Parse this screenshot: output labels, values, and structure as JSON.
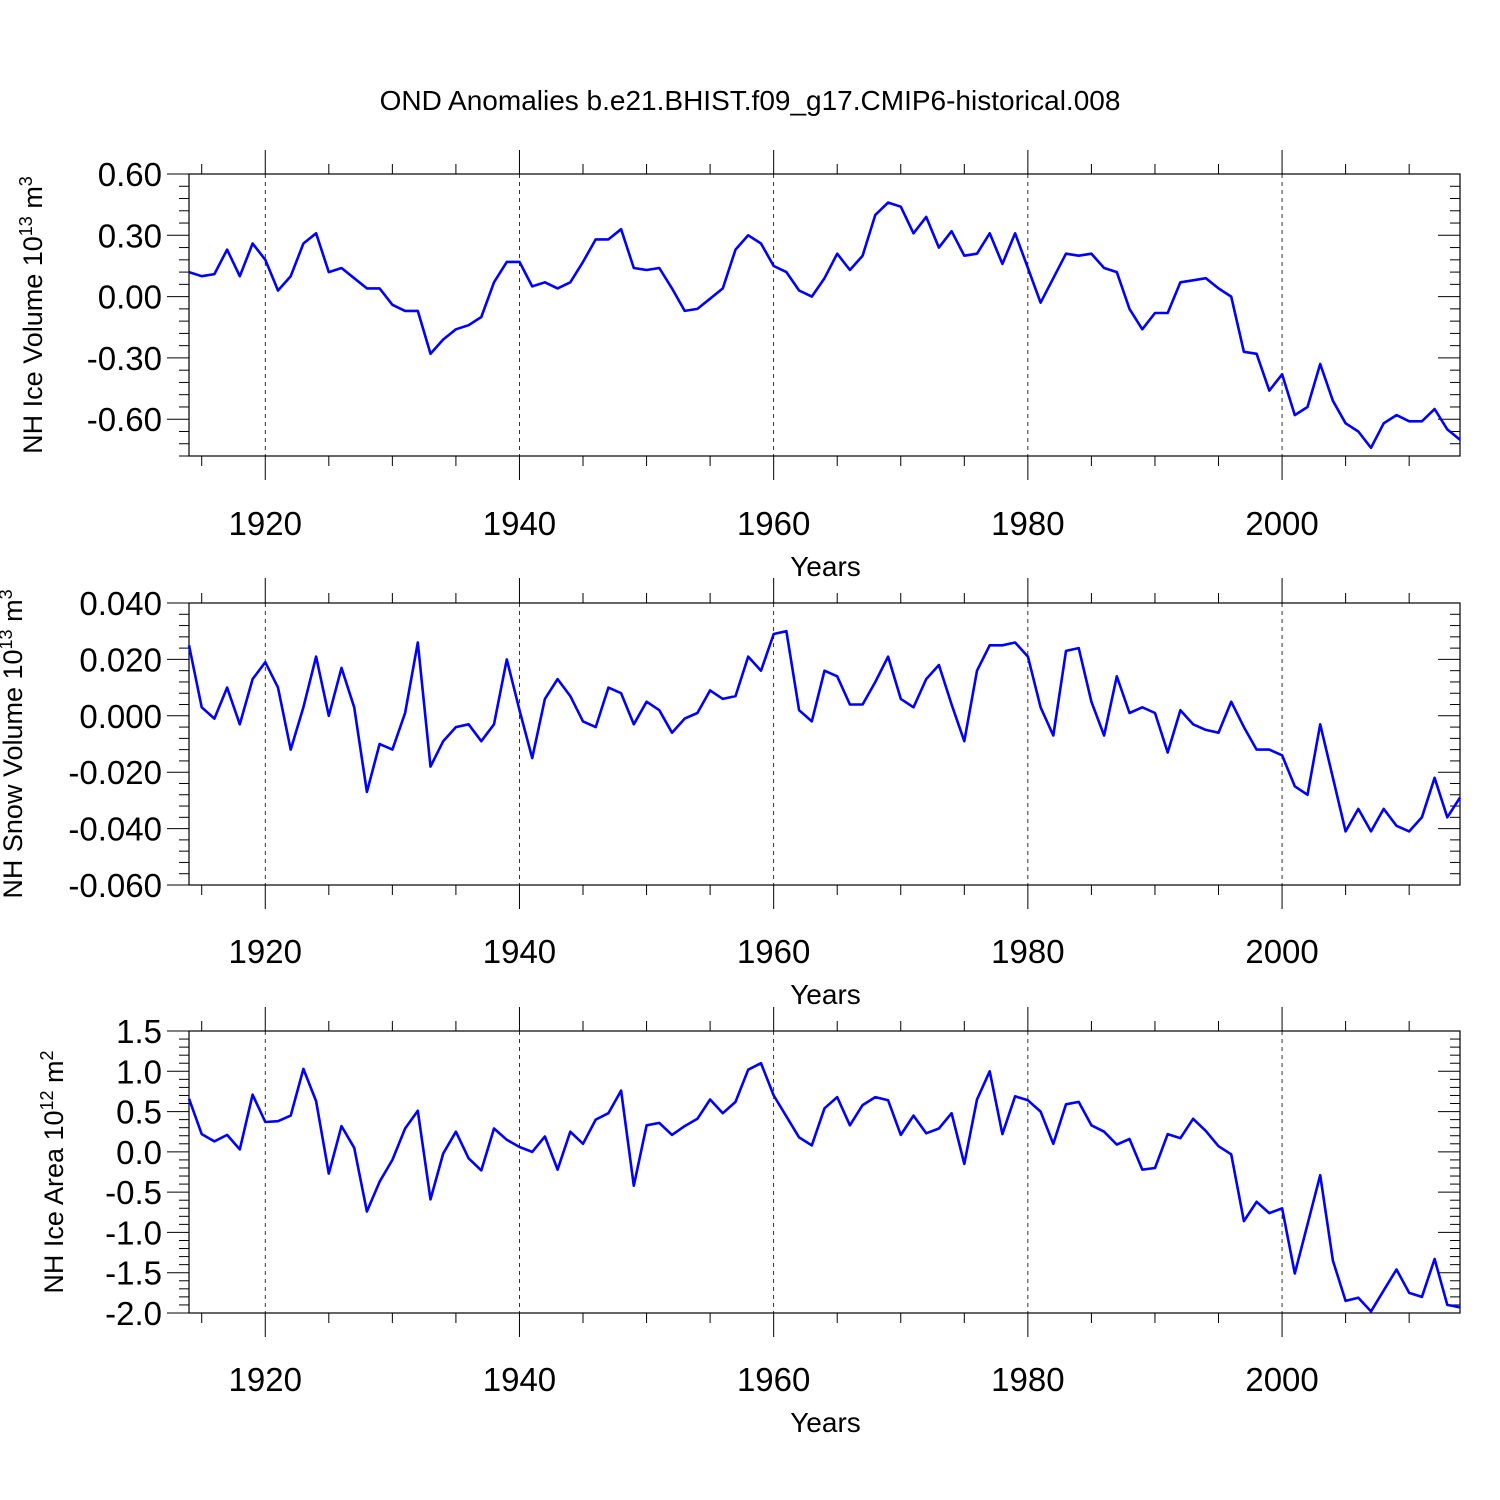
{
  "title": "OND Anomalies b.e21.BHIST.f09_g17.CMIP6-historical.008",
  "chart_data": [
    {
      "type": "line",
      "xlabel": "Years",
      "ylabel": "NH Ice Volume 10",
      "ylabel_exp": "13",
      "ylabel_unit": " m",
      "ylabel_unit_exp": "3",
      "xlim": [
        1914,
        2014
      ],
      "ylim": [
        -0.78,
        0.6
      ],
      "yticks": [
        0.6,
        0.3,
        0.0,
        -0.3,
        -0.6
      ],
      "ytick_labels": [
        "0.60",
        "0.30",
        "0.00",
        "-0.30",
        "-0.60"
      ],
      "xticks": [
        1920,
        1940,
        1960,
        1980,
        2000
      ],
      "xtick_labels": [
        "1920",
        "1940",
        "1960",
        "1980",
        "2000"
      ],
      "series": [
        {
          "name": "NH Ice Volume",
          "color": "#0000ff",
          "x_start": 1914,
          "values": [
            0.12,
            0.1,
            0.11,
            0.23,
            0.1,
            0.26,
            0.18,
            0.03,
            0.1,
            0.26,
            0.31,
            0.12,
            0.14,
            0.09,
            0.04,
            0.04,
            -0.04,
            -0.07,
            -0.07,
            -0.28,
            -0.21,
            -0.16,
            -0.14,
            -0.1,
            0.07,
            0.17,
            0.17,
            0.05,
            0.07,
            0.04,
            0.07,
            0.17,
            0.28,
            0.28,
            0.33,
            0.14,
            0.13,
            0.14,
            0.04,
            -0.07,
            -0.06,
            -0.01,
            0.04,
            0.23,
            0.3,
            0.26,
            0.15,
            0.12,
            0.03,
            0.0,
            0.09,
            0.21,
            0.13,
            0.2,
            0.4,
            0.46,
            0.44,
            0.31,
            0.39,
            0.24,
            0.32,
            0.2,
            0.21,
            0.31,
            0.16,
            0.31,
            0.14,
            -0.03,
            0.09,
            0.21,
            0.2,
            0.21,
            0.14,
            0.12,
            -0.06,
            -0.16,
            -0.08,
            -0.08,
            0.07,
            0.08,
            0.09,
            0.04,
            0.0,
            -0.27,
            -0.28,
            -0.46,
            -0.38,
            -0.58,
            -0.54,
            -0.33,
            -0.51,
            -0.62,
            -0.66,
            -0.74,
            -0.62,
            -0.58,
            -0.61,
            -0.61,
            -0.55,
            -0.65,
            -0.7
          ]
        }
      ]
    },
    {
      "type": "line",
      "xlabel": "Years",
      "ylabel": "NH Snow Volume 10",
      "ylabel_exp": "13",
      "ylabel_unit": " m",
      "ylabel_unit_exp": "3",
      "xlim": [
        1914,
        2014
      ],
      "ylim": [
        -0.06,
        0.04
      ],
      "yticks": [
        0.04,
        0.02,
        0.0,
        -0.02,
        -0.04,
        -0.06
      ],
      "ytick_labels": [
        "0.040",
        "0.020",
        "0.000",
        "-0.020",
        "-0.040",
        "-0.060"
      ],
      "xticks": [
        1920,
        1940,
        1960,
        1980,
        2000
      ],
      "xtick_labels": [
        "1920",
        "1940",
        "1960",
        "1980",
        "2000"
      ],
      "series": [
        {
          "name": "NH Snow Volume",
          "color": "#0000ff",
          "x_start": 1914,
          "values": [
            0.025,
            0.003,
            -0.001,
            0.01,
            -0.003,
            0.013,
            0.019,
            0.01,
            -0.012,
            0.003,
            0.021,
            0.0,
            0.017,
            0.003,
            -0.027,
            -0.01,
            -0.012,
            0.001,
            0.026,
            -0.018,
            -0.009,
            -0.004,
            -0.003,
            -0.009,
            -0.003,
            0.02,
            0.002,
            -0.015,
            0.006,
            0.013,
            0.007,
            -0.002,
            -0.004,
            0.01,
            0.008,
            -0.003,
            0.005,
            0.002,
            -0.006,
            -0.001,
            0.001,
            0.009,
            0.006,
            0.007,
            0.021,
            0.016,
            0.029,
            0.03,
            0.002,
            -0.002,
            0.016,
            0.014,
            0.004,
            0.004,
            0.012,
            0.021,
            0.006,
            0.003,
            0.013,
            0.018,
            0.004,
            -0.009,
            0.016,
            0.025,
            0.025,
            0.026,
            0.021,
            0.003,
            -0.007,
            0.023,
            0.024,
            0.005,
            -0.007,
            0.014,
            0.001,
            0.003,
            0.001,
            -0.013,
            0.002,
            -0.003,
            -0.005,
            -0.006,
            0.005,
            -0.004,
            -0.012,
            -0.012,
            -0.014,
            -0.025,
            -0.028,
            -0.003,
            -0.022,
            -0.041,
            -0.033,
            -0.041,
            -0.033,
            -0.039,
            -0.041,
            -0.036,
            -0.022,
            -0.036,
            -0.029
          ]
        }
      ]
    },
    {
      "type": "line",
      "xlabel": "Years",
      "ylabel": "NH Ice Area 10",
      "ylabel_exp": "12",
      "ylabel_unit": " m",
      "ylabel_unit_exp": "2",
      "xlim": [
        1914,
        2014
      ],
      "ylim": [
        -2.0,
        1.5
      ],
      "yticks": [
        1.5,
        1.0,
        0.5,
        0.0,
        -0.5,
        -1.0,
        -1.5,
        -2.0
      ],
      "ytick_labels": [
        "1.5",
        "1.0",
        "0.5",
        "0.0",
        "-0.5",
        "-1.0",
        "-1.5",
        "-2.0"
      ],
      "xticks": [
        1920,
        1940,
        1960,
        1980,
        2000
      ],
      "xtick_labels": [
        "1920",
        "1940",
        "1960",
        "1980",
        "2000"
      ],
      "series": [
        {
          "name": "NH Ice Area",
          "color": "#0000ff",
          "x_start": 1914,
          "values": [
            0.66,
            0.22,
            0.13,
            0.21,
            0.03,
            0.71,
            0.37,
            0.38,
            0.45,
            1.03,
            0.63,
            -0.27,
            0.32,
            0.05,
            -0.74,
            -0.37,
            -0.1,
            0.29,
            0.51,
            -0.59,
            -0.02,
            0.25,
            -0.08,
            -0.23,
            0.29,
            0.15,
            0.06,
            0.0,
            0.19,
            -0.22,
            0.25,
            0.1,
            0.4,
            0.48,
            0.76,
            -0.42,
            0.33,
            0.36,
            0.21,
            0.32,
            0.41,
            0.65,
            0.48,
            0.62,
            1.02,
            1.1,
            0.7,
            0.44,
            0.18,
            0.08,
            0.54,
            0.68,
            0.33,
            0.58,
            0.68,
            0.64,
            0.21,
            0.45,
            0.23,
            0.29,
            0.48,
            -0.15,
            0.65,
            1.0,
            0.22,
            0.69,
            0.64,
            0.5,
            0.1,
            0.59,
            0.62,
            0.33,
            0.25,
            0.09,
            0.16,
            -0.22,
            -0.2,
            0.22,
            0.17,
            0.41,
            0.26,
            0.07,
            -0.03,
            -0.86,
            -0.62,
            -0.76,
            -0.7,
            -1.51,
            -0.9,
            -0.29,
            -1.35,
            -1.85,
            -1.81,
            -1.98,
            -1.72,
            -1.46,
            -1.75,
            -1.8,
            -1.33,
            -1.9,
            -1.93
          ]
        }
      ]
    }
  ]
}
